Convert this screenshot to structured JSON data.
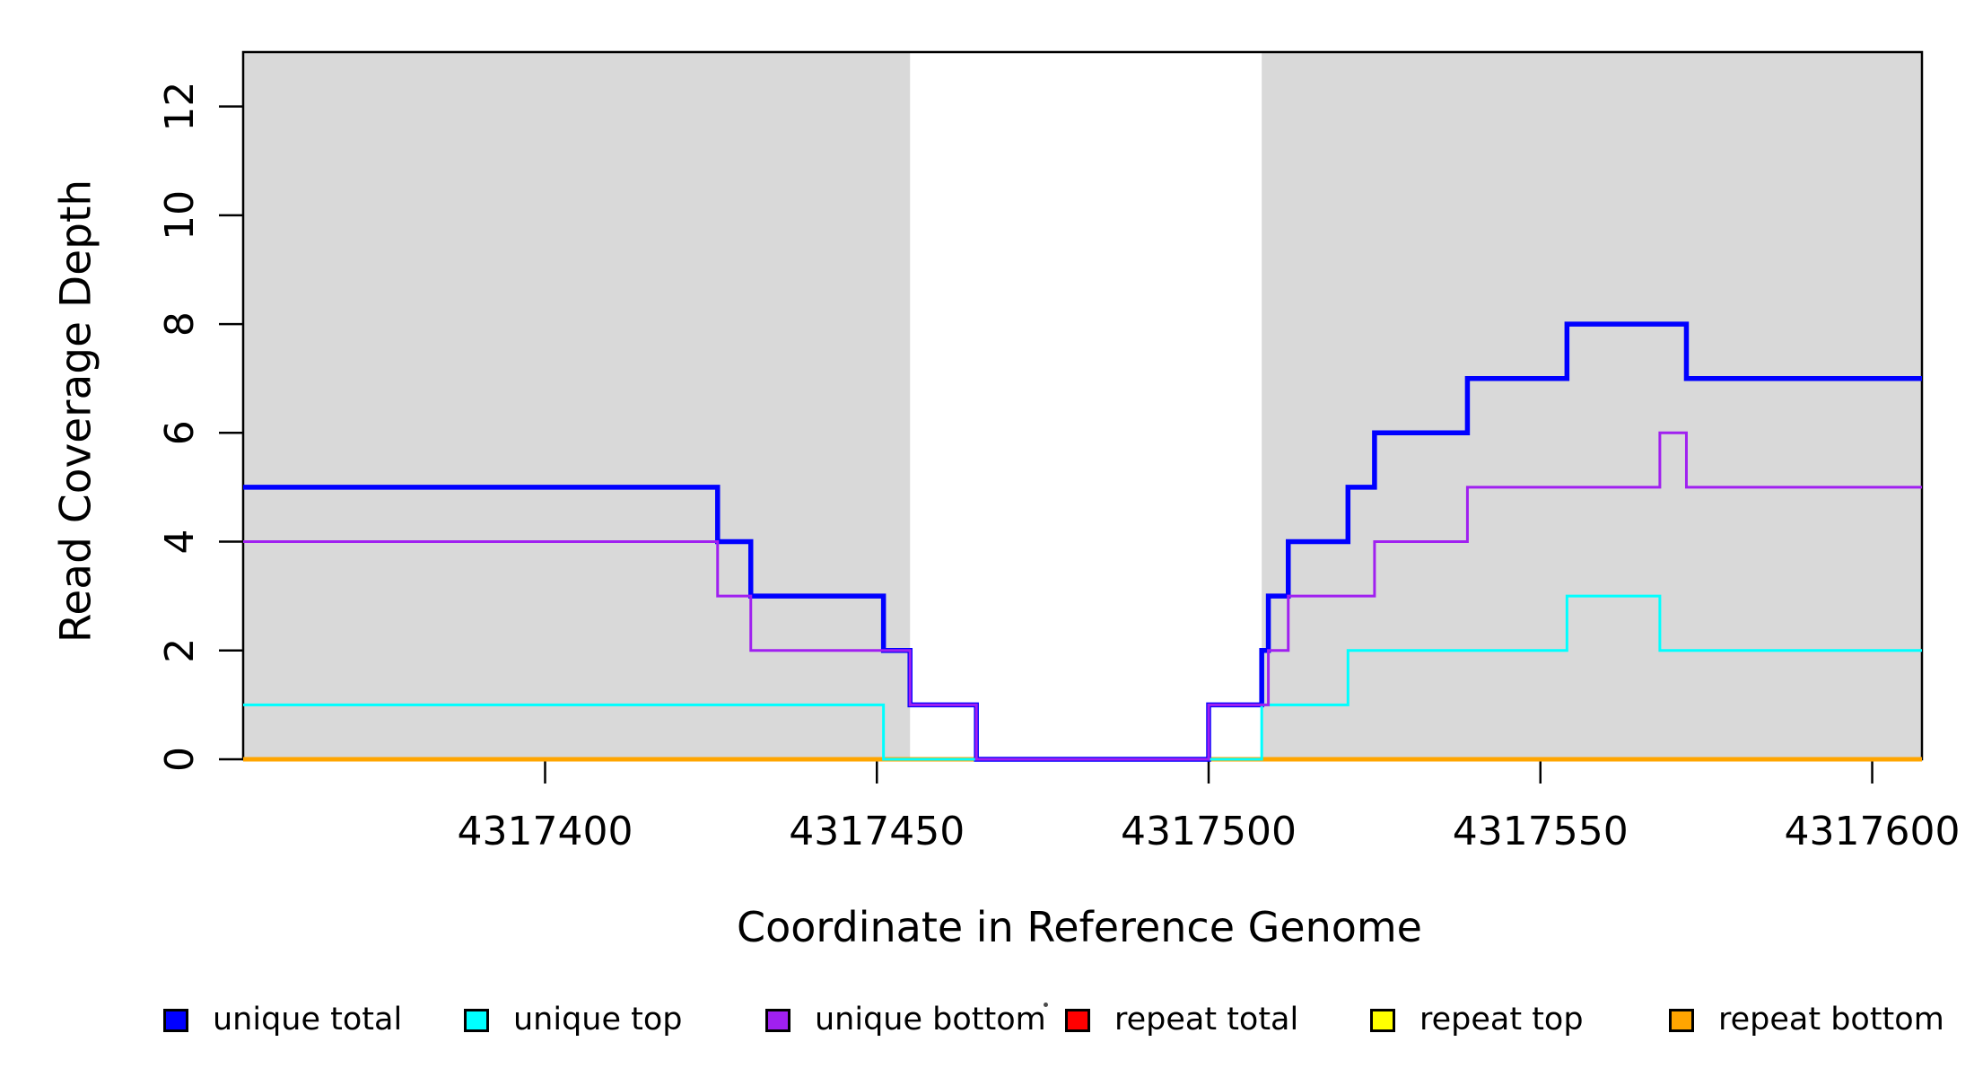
{
  "figure": {
    "background": "#ffffff",
    "plot_area_fill": "#ffffff"
  },
  "chart_data": {
    "type": "line",
    "subtype": "step",
    "title": "",
    "xlabel": "Coordinate in Reference Genome",
    "ylabel": "Read Coverage Depth",
    "xlim": [
      4317354.5,
      4317607.5
    ],
    "ylim": [
      0,
      13
    ],
    "x_ticks": [
      4317400,
      4317450,
      4317500,
      4317550,
      4317600
    ],
    "y_ticks": [
      0,
      2,
      4,
      6,
      8,
      10,
      12
    ],
    "grid": false,
    "box_color": "#000000",
    "shaded_regions": [
      {
        "x0": 4317354.5,
        "x1": 4317455,
        "color": "#D9D9D9"
      },
      {
        "x0": 4317508,
        "x1": 4317607.5,
        "color": "#D9D9D9"
      }
    ],
    "series": [
      {
        "name": "repeat total",
        "color": "#FF0000",
        "width": 5,
        "steps": [
          [
            4317354.5,
            0
          ]
        ]
      },
      {
        "name": "repeat top",
        "color": "#FFFF00",
        "width": 5,
        "steps": [
          [
            4317354.5,
            0
          ]
        ]
      },
      {
        "name": "repeat bottom",
        "color": "#FFA500",
        "width": 5,
        "steps": [
          [
            4317354.5,
            0
          ]
        ]
      },
      {
        "name": "unique total",
        "color": "#0000FF",
        "width": 5.5,
        "steps": [
          [
            4317354.5,
            5
          ],
          [
            4317426,
            4
          ],
          [
            4317431,
            3
          ],
          [
            4317451,
            2
          ],
          [
            4317455,
            1
          ],
          [
            4317465,
            0
          ],
          [
            4317500,
            1
          ],
          [
            4317508,
            2
          ],
          [
            4317509,
            3
          ],
          [
            4317512,
            4
          ],
          [
            4317521,
            5
          ],
          [
            4317525,
            6
          ],
          [
            4317539,
            7
          ],
          [
            4317554,
            8
          ],
          [
            4317572,
            7
          ]
        ]
      },
      {
        "name": "unique top",
        "color": "#00FFFF",
        "width": 3,
        "steps": [
          [
            4317354.5,
            1
          ],
          [
            4317451,
            0
          ],
          [
            4317508,
            1
          ],
          [
            4317521,
            2
          ],
          [
            4317554,
            3
          ],
          [
            4317568,
            2
          ]
        ]
      },
      {
        "name": "unique bottom",
        "color": "#A020F0",
        "width": 3,
        "steps": [
          [
            4317354.5,
            4
          ],
          [
            4317426,
            3
          ],
          [
            4317431,
            2
          ],
          [
            4317455,
            1
          ],
          [
            4317465,
            0
          ],
          [
            4317500,
            1
          ],
          [
            4317509,
            2
          ],
          [
            4317512,
            3
          ],
          [
            4317525,
            4
          ],
          [
            4317539,
            5
          ],
          [
            4317568,
            6
          ],
          [
            4317572,
            5
          ]
        ]
      }
    ],
    "legend": {
      "position": "bottom",
      "items": [
        {
          "label": "unique total",
          "color": "#0000FF"
        },
        {
          "label": "unique top",
          "color": "#00FFFF"
        },
        {
          "label": "unique bottom",
          "color": "#A020F0"
        },
        {
          "label": "repeat total",
          "color": "#FF0000"
        },
        {
          "label": "repeat top",
          "color": "#FFFF00"
        },
        {
          "label": "repeat bottom",
          "color": "#FFA500"
        }
      ]
    }
  }
}
